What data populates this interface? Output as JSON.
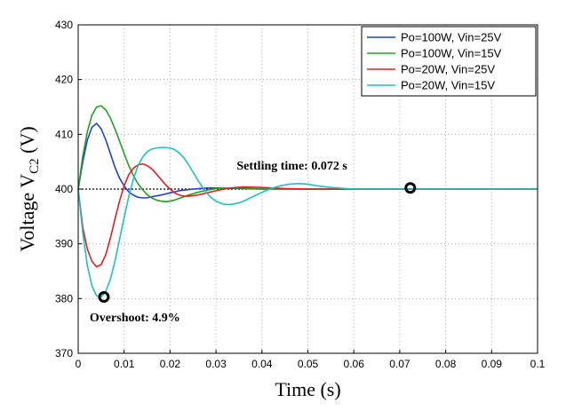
{
  "chart_data": {
    "type": "line",
    "xlabel": "Time (s)",
    "ylabel_main": "Voltage V",
    "ylabel_sub": "C2",
    "ylabel_unit": " (V)",
    "xlim": [
      0,
      0.1
    ],
    "ylim": [
      370,
      430
    ],
    "x_ticks": [
      "0",
      "0.01",
      "0.02",
      "0.03",
      "0.04",
      "0.05",
      "0.06",
      "0.07",
      "0.08",
      "0.09",
      "0.1"
    ],
    "y_ticks": [
      "370",
      "380",
      "390",
      "400",
      "410",
      "420",
      "430"
    ],
    "grid": true,
    "legend_position": "top-right",
    "reference_line": 400,
    "series": [
      {
        "name": "Po=100W, Vin=25V",
        "color": "#1f3fd0",
        "x": [
          0,
          0.001,
          0.002,
          0.003,
          0.004,
          0.005,
          0.006,
          0.007,
          0.008,
          0.009,
          0.01,
          0.011,
          0.012,
          0.013,
          0.014,
          0.015,
          0.016,
          0.018,
          0.02,
          0.022,
          0.025,
          0.028,
          0.03,
          0.035,
          0.04,
          0.05,
          0.06,
          0.1
        ],
        "y": [
          400,
          405,
          409,
          411.3,
          412,
          411,
          409,
          406.5,
          404,
          402,
          400.6,
          399.5,
          398.9,
          398.5,
          398.4,
          398.4,
          398.6,
          398.9,
          399.3,
          399.7,
          400,
          400.2,
          400.2,
          400.1,
          400,
          400,
          400,
          400
        ]
      },
      {
        "name": "Po=100W, Vin=15V",
        "color": "#22a022",
        "x": [
          0,
          0.001,
          0.002,
          0.003,
          0.004,
          0.005,
          0.006,
          0.007,
          0.008,
          0.009,
          0.01,
          0.011,
          0.012,
          0.013,
          0.014,
          0.015,
          0.016,
          0.017,
          0.018,
          0.019,
          0.02,
          0.021,
          0.022,
          0.024,
          0.026,
          0.028,
          0.03,
          0.035,
          0.04,
          0.05,
          0.06,
          0.1
        ],
        "y": [
          400,
          406,
          410.5,
          413.5,
          415,
          415.2,
          414.5,
          413,
          411,
          408.8,
          406.5,
          404.3,
          402.5,
          401,
          399.9,
          399,
          398.4,
          398,
          397.8,
          397.7,
          397.8,
          398,
          398.3,
          398.9,
          399.4,
          399.8,
          400.1,
          400.2,
          400,
          400,
          400,
          400
        ]
      },
      {
        "name": "Po=20W, Vin=25V",
        "color": "#e02020",
        "x": [
          0,
          0.001,
          0.002,
          0.003,
          0.004,
          0.005,
          0.006,
          0.007,
          0.008,
          0.009,
          0.01,
          0.011,
          0.012,
          0.013,
          0.014,
          0.015,
          0.016,
          0.017,
          0.018,
          0.019,
          0.02,
          0.021,
          0.022,
          0.023,
          0.024,
          0.026,
          0.028,
          0.03,
          0.033,
          0.036,
          0.04,
          0.045,
          0.05,
          0.06,
          0.1
        ],
        "y": [
          400,
          393,
          389,
          386.8,
          385.8,
          386.2,
          388,
          391,
          394.5,
          397.8,
          400.6,
          402.6,
          403.8,
          404.4,
          404.6,
          404.3,
          403.7,
          402.8,
          401.8,
          400.8,
          400,
          399.3,
          398.9,
          398.7,
          398.7,
          398.9,
          399.3,
          399.7,
          400.2,
          400.4,
          400.3,
          400.1,
          400,
          400,
          400
        ]
      },
      {
        "name": "Po=20W, Vin=15V",
        "color": "#1ec0c0",
        "x": [
          0,
          0.001,
          0.002,
          0.003,
          0.004,
          0.005,
          0.006,
          0.007,
          0.008,
          0.009,
          0.01,
          0.011,
          0.012,
          0.013,
          0.014,
          0.015,
          0.016,
          0.017,
          0.018,
          0.019,
          0.02,
          0.021,
          0.022,
          0.023,
          0.024,
          0.025,
          0.026,
          0.027,
          0.028,
          0.029,
          0.03,
          0.031,
          0.032,
          0.033,
          0.034,
          0.035,
          0.036,
          0.038,
          0.04,
          0.042,
          0.044,
          0.046,
          0.048,
          0.05,
          0.052,
          0.055,
          0.06,
          0.065,
          0.07,
          0.1
        ],
        "y": [
          400,
          392,
          386,
          382.3,
          380.5,
          380.3,
          381.3,
          383.5,
          386.8,
          390.8,
          394.8,
          398.6,
          401.8,
          404.2,
          405.8,
          406.8,
          407.3,
          407.5,
          407.6,
          407.6,
          407.5,
          407.2,
          406.6,
          405.7,
          404.5,
          403.1,
          401.7,
          400.4,
          399.3,
          398.4,
          397.8,
          397.4,
          397.2,
          397.2,
          397.3,
          397.5,
          397.8,
          398.6,
          399.4,
          400.1,
          400.6,
          400.9,
          401,
          400.9,
          400.6,
          400.3,
          400,
          400,
          400,
          400
        ]
      }
    ],
    "annotations": [
      {
        "text": "Settling time: 0.072 s",
        "x": 0.0345,
        "y": 403.6
      },
      {
        "text": "Overshoot: 4.9%",
        "x": 0.0025,
        "y": 375.8
      }
    ],
    "markers": [
      {
        "x": 0.0056,
        "y": 380.3
      },
      {
        "x": 0.0723,
        "y": 400.2
      }
    ]
  }
}
